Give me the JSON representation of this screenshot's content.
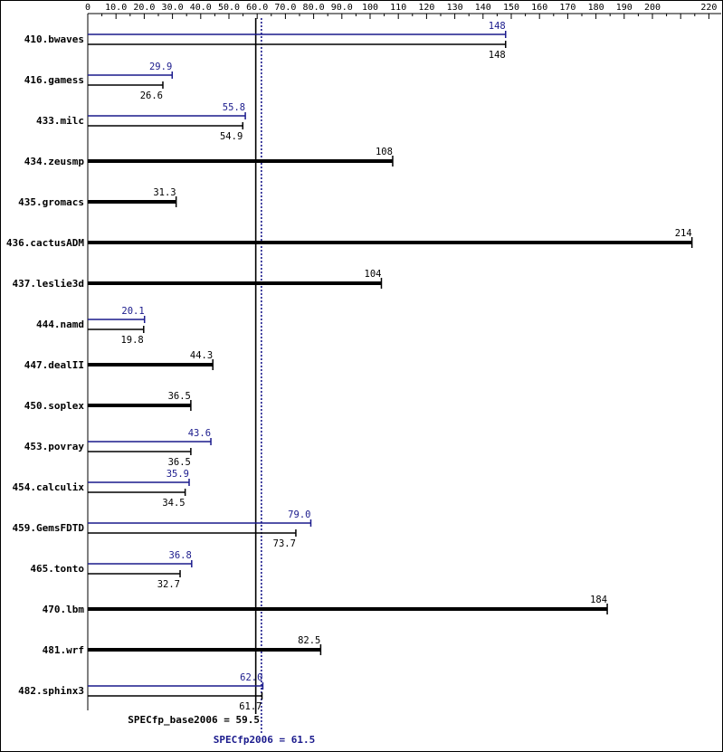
{
  "colors": {
    "base": "#000000",
    "peak": "#1a1a8c",
    "frame": "#000000"
  },
  "chart_data": {
    "type": "bar",
    "orientation": "horizontal",
    "x_ticks": [
      {
        "v": 0,
        "label": "0"
      },
      {
        "v": 10,
        "label": "10.0"
      },
      {
        "v": 20,
        "label": "20.0"
      },
      {
        "v": 30,
        "label": "30.0"
      },
      {
        "v": 40,
        "label": "40.0"
      },
      {
        "v": 50,
        "label": "50.0"
      },
      {
        "v": 60,
        "label": "60.0"
      },
      {
        "v": 70,
        "label": "70.0"
      },
      {
        "v": 80,
        "label": "80.0"
      },
      {
        "v": 90,
        "label": "90.0"
      },
      {
        "v": 100,
        "label": "100"
      },
      {
        "v": 110,
        "label": "110"
      },
      {
        "v": 120,
        "label": "120"
      },
      {
        "v": 130,
        "label": "130"
      },
      {
        "v": 140,
        "label": "140"
      },
      {
        "v": 150,
        "label": "150"
      },
      {
        "v": 160,
        "label": "160"
      },
      {
        "v": 170,
        "label": "170"
      },
      {
        "v": 180,
        "label": "180"
      },
      {
        "v": 190,
        "label": "190"
      },
      {
        "v": 200,
        "label": "200"
      },
      {
        "v": 220,
        "label": "220"
      }
    ],
    "xlim": [
      0,
      220
    ],
    "benchmarks": [
      {
        "name": "410.bwaves",
        "base": 148,
        "base_label": "148",
        "peak": 148,
        "peak_label": "148"
      },
      {
        "name": "416.gamess",
        "base": 26.6,
        "base_label": "26.6",
        "peak": 29.9,
        "peak_label": "29.9"
      },
      {
        "name": "433.milc",
        "base": 54.9,
        "base_label": "54.9",
        "peak": 55.8,
        "peak_label": "55.8"
      },
      {
        "name": "434.zeusmp",
        "base": 108,
        "base_label": "108",
        "peak": null,
        "peak_label": null
      },
      {
        "name": "435.gromacs",
        "base": 31.3,
        "base_label": "31.3",
        "peak": null,
        "peak_label": null
      },
      {
        "name": "436.cactusADM",
        "base": 214,
        "base_label": "214",
        "peak": null,
        "peak_label": null
      },
      {
        "name": "437.leslie3d",
        "base": 104,
        "base_label": "104",
        "peak": null,
        "peak_label": null
      },
      {
        "name": "444.namd",
        "base": 19.8,
        "base_label": "19.8",
        "peak": 20.1,
        "peak_label": "20.1"
      },
      {
        "name": "447.dealII",
        "base": 44.3,
        "base_label": "44.3",
        "peak": null,
        "peak_label": null
      },
      {
        "name": "450.soplex",
        "base": 36.5,
        "base_label": "36.5",
        "peak": null,
        "peak_label": null
      },
      {
        "name": "453.povray",
        "base": 36.5,
        "base_label": "36.5",
        "peak": 43.6,
        "peak_label": "43.6"
      },
      {
        "name": "454.calculix",
        "base": 34.5,
        "base_label": "34.5",
        "peak": 35.9,
        "peak_label": "35.9"
      },
      {
        "name": "459.GemsFDTD",
        "base": 73.7,
        "base_label": "73.7",
        "peak": 79.0,
        "peak_label": "79.0"
      },
      {
        "name": "465.tonto",
        "base": 32.7,
        "base_label": "32.7",
        "peak": 36.8,
        "peak_label": "36.8"
      },
      {
        "name": "470.lbm",
        "base": 184,
        "base_label": "184",
        "peak": null,
        "peak_label": null
      },
      {
        "name": "481.wrf",
        "base": 82.5,
        "base_label": "82.5",
        "peak": null,
        "peak_label": null
      },
      {
        "name": "482.sphinx3",
        "base": 61.7,
        "base_label": "61.7",
        "peak": 62.0,
        "peak_label": "62.0"
      }
    ],
    "summary": {
      "base_text": "SPECfp_base2006 = 59.5",
      "base_value": 59.5,
      "peak_text": "SPECfp2006 = 61.5",
      "peak_value": 61.5
    }
  }
}
